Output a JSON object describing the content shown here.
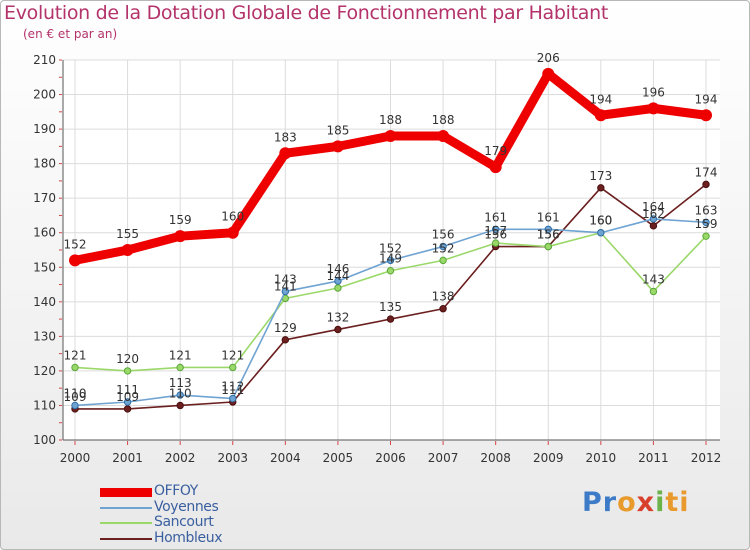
{
  "chart_data": {
    "type": "line",
    "title": "Evolution de la Dotation Globale de Fonctionnement par Habitant",
    "subtitle": "(en € et par an)",
    "xlabel": "",
    "ylabel": "",
    "ylim": [
      100,
      210
    ],
    "yticks": [
      100,
      110,
      120,
      130,
      140,
      150,
      160,
      170,
      180,
      190,
      200,
      210
    ],
    "categories": [
      "2000",
      "2001",
      "2002",
      "2003",
      "2004",
      "2005",
      "2006",
      "2007",
      "2008",
      "2009",
      "2010",
      "2011",
      "2012"
    ],
    "grid": true,
    "legend_position": "bottom-left",
    "series": [
      {
        "name": "Hombleux",
        "color": "#6b1f1f",
        "values": [
          109,
          109,
          110,
          111,
          129,
          132,
          135,
          138,
          156,
          156,
          173,
          162,
          174
        ]
      },
      {
        "name": "Sancourt",
        "color": "#9bd86a",
        "values": [
          121,
          120,
          121,
          121,
          141,
          144,
          149,
          152,
          157,
          156,
          160,
          143,
          159
        ]
      },
      {
        "name": "Voyennes",
        "color": "#6fa3d2",
        "values": [
          110,
          111,
          113,
          112,
          143,
          146,
          152,
          156,
          161,
          161,
          160,
          164,
          163
        ]
      },
      {
        "name": "OFFOY",
        "color": "#ee0000",
        "values": [
          152,
          155,
          159,
          160,
          183,
          185,
          188,
          188,
          179,
          206,
          194,
          196,
          194
        ]
      }
    ],
    "legend_order": [
      "OFFOY",
      "Voyennes",
      "Sancourt",
      "Hombleux"
    ]
  },
  "brand": {
    "parts": [
      "Pr",
      "o",
      "x",
      "i",
      "ti"
    ]
  }
}
